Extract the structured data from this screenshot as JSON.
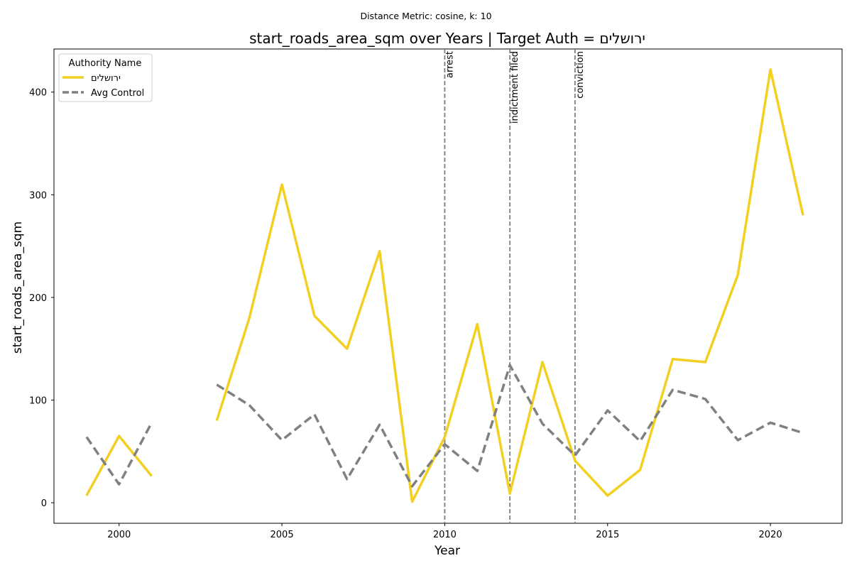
{
  "chart_data": {
    "type": "line",
    "suptitle": "Distance Metric: cosine, k: 10",
    "title": "start_roads_area_sqm over Years | Target Auth = ירושלים",
    "xlabel": "Year",
    "ylabel": "start_roads_area_sqm",
    "xlim": [
      1998,
      2022.2
    ],
    "ylim": [
      -20,
      442
    ],
    "xticks": [
      2000,
      2005,
      2010,
      2015,
      2020
    ],
    "yticks": [
      0,
      100,
      200,
      300,
      400
    ],
    "legend": {
      "title": "Authority Name",
      "position": "top-left",
      "entries": [
        "ירושלים",
        "Avg Control"
      ]
    },
    "series": [
      {
        "name": "ירושלים",
        "color": "#f2cf21",
        "style": "solid",
        "x": [
          1999,
          2000,
          2001,
          2003,
          2004,
          2005,
          2006,
          2007,
          2008,
          2009,
          2010,
          2011,
          2012,
          2013,
          2014,
          2015,
          2016,
          2017,
          2018,
          2019,
          2020,
          2021
        ],
        "values": [
          7,
          65,
          26,
          80,
          180,
          310,
          182,
          150,
          245,
          1,
          64,
          174,
          9,
          137,
          41,
          7,
          32,
          140,
          137,
          222,
          422,
          280
        ]
      },
      {
        "name": "Avg Control",
        "color": "#808080",
        "style": "dashed",
        "x": [
          1999,
          2000,
          2001,
          2003,
          2004,
          2005,
          2006,
          2007,
          2008,
          2009,
          2010,
          2011,
          2012,
          2013,
          2014,
          2015,
          2016,
          2017,
          2018,
          2019,
          2020,
          2021
        ],
        "values": [
          64,
          18,
          78,
          115,
          95,
          61,
          86,
          23,
          76,
          16,
          57,
          31,
          134,
          77,
          46,
          90,
          60,
          110,
          101,
          61,
          78,
          68
        ]
      }
    ],
    "events": [
      {
        "x": 2010,
        "label": "arrest"
      },
      {
        "x": 2012,
        "label": "indictment filed"
      },
      {
        "x": 2014,
        "label": "conviction"
      }
    ]
  }
}
